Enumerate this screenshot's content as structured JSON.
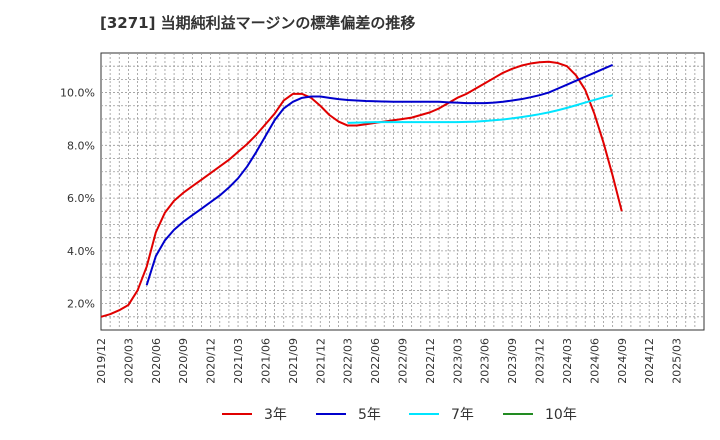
{
  "chart_data": {
    "type": "line",
    "title": "[3271]  当期純利益マージンの標準偏差の推移",
    "xlabel": "",
    "ylabel": "",
    "ylim": [
      1.0,
      11.5
    ],
    "y_ticks": [
      2.0,
      4.0,
      6.0,
      8.0,
      10.0
    ],
    "y_tick_labels": [
      "2.0%",
      "4.0%",
      "6.0%",
      "8.0%",
      "10.0%"
    ],
    "x_range": [
      0,
      66
    ],
    "x_tick_labels": [
      "2019/12",
      "2020/03",
      "2020/06",
      "2020/09",
      "2020/12",
      "2021/03",
      "2021/06",
      "2021/09",
      "2021/12",
      "2022/03",
      "2022/06",
      "2022/09",
      "2022/12",
      "2023/03",
      "2023/06",
      "2023/09",
      "2023/12",
      "2024/03",
      "2024/06",
      "2024/09",
      "2024/12",
      "2025/03"
    ],
    "grid": true,
    "legend_position": "bottom",
    "series": [
      {
        "name": "3年",
        "color": "#e00000",
        "x": [
          0,
          1,
          2,
          3,
          4,
          5,
          6,
          7,
          8,
          9,
          10,
          11,
          12,
          13,
          14,
          15,
          16,
          17,
          18,
          19,
          20,
          21,
          22,
          23,
          24,
          25,
          26,
          27,
          28,
          29,
          30,
          31,
          32,
          33,
          34,
          35,
          36,
          37,
          38,
          39,
          40,
          41,
          42,
          43,
          44,
          45,
          46,
          47,
          48,
          49,
          50,
          51,
          52,
          53,
          54,
          55,
          56,
          57,
          58,
          59,
          60,
          61,
          62,
          63
        ],
        "values": [
          1.5,
          1.6,
          1.75,
          1.95,
          2.5,
          3.4,
          4.7,
          5.45,
          5.9,
          6.2,
          6.45,
          6.7,
          6.95,
          7.2,
          7.45,
          7.75,
          8.05,
          8.4,
          8.8,
          9.2,
          9.7,
          9.95,
          9.95,
          9.8,
          9.5,
          9.15,
          8.9,
          8.75,
          8.75,
          8.8,
          8.85,
          8.9,
          8.95,
          9.0,
          9.05,
          9.15,
          9.25,
          9.4,
          9.6,
          9.8,
          9.95,
          10.15,
          10.35,
          10.55,
          10.75,
          10.9,
          11.02,
          11.1,
          11.15,
          11.17,
          11.12,
          11.0,
          10.65,
          10.1,
          9.2,
          8.1,
          6.85,
          5.5,
          null,
          null,
          null,
          null,
          null,
          null
        ]
      },
      {
        "name": "5年",
        "color": "#0000cc",
        "x": [
          0,
          1,
          2,
          3,
          4,
          5,
          6,
          7,
          8,
          9,
          10,
          11,
          12,
          13,
          14,
          15,
          16,
          17,
          18,
          19,
          20,
          21,
          22,
          23,
          24,
          25,
          26,
          27,
          28,
          29,
          30,
          31,
          32,
          33,
          34,
          35,
          36,
          37,
          38,
          39,
          40,
          41,
          42,
          43,
          44,
          45,
          46,
          47,
          48,
          49,
          50,
          51,
          52,
          53,
          54,
          55,
          56,
          57,
          58,
          59,
          60,
          61,
          62,
          63
        ],
        "values": [
          null,
          null,
          null,
          null,
          null,
          2.7,
          3.8,
          4.4,
          4.8,
          5.1,
          5.35,
          5.6,
          5.85,
          6.1,
          6.4,
          6.75,
          7.2,
          7.75,
          8.35,
          8.95,
          9.4,
          9.65,
          9.8,
          9.85,
          9.85,
          9.8,
          9.75,
          9.72,
          9.7,
          9.68,
          9.67,
          9.66,
          9.65,
          9.65,
          9.65,
          9.65,
          9.65,
          9.65,
          9.63,
          9.62,
          9.6,
          9.6,
          9.6,
          9.62,
          9.65,
          9.7,
          9.75,
          9.82,
          9.9,
          10.0,
          10.15,
          10.3,
          10.45,
          10.6,
          10.75,
          10.9,
          11.05,
          null,
          null,
          null,
          null,
          null,
          null,
          null
        ]
      },
      {
        "name": "7年",
        "color": "#00e5ff",
        "x": [
          0,
          1,
          2,
          3,
          4,
          5,
          6,
          7,
          8,
          9,
          10,
          11,
          12,
          13,
          14,
          15,
          16,
          17,
          18,
          19,
          20,
          21,
          22,
          23,
          24,
          25,
          26,
          27,
          28,
          29,
          30,
          31,
          32,
          33,
          34,
          35,
          36,
          37,
          38,
          39,
          40,
          41,
          42,
          43,
          44,
          45,
          46,
          47,
          48,
          49,
          50,
          51,
          52,
          53,
          54,
          55,
          56,
          57,
          58,
          59,
          60,
          61,
          62,
          63
        ],
        "values": [
          null,
          null,
          null,
          null,
          null,
          null,
          null,
          null,
          null,
          null,
          null,
          null,
          null,
          null,
          null,
          null,
          null,
          null,
          null,
          null,
          null,
          null,
          null,
          null,
          null,
          null,
          null,
          8.85,
          8.86,
          8.87,
          8.88,
          8.88,
          8.88,
          8.88,
          8.88,
          8.88,
          8.88,
          8.88,
          8.88,
          8.88,
          8.89,
          8.9,
          8.92,
          8.95,
          8.98,
          9.02,
          9.07,
          9.12,
          9.18,
          9.25,
          9.33,
          9.42,
          9.52,
          9.62,
          9.72,
          9.82,
          9.9,
          null,
          null,
          null,
          null,
          null,
          null,
          null
        ]
      },
      {
        "name": "10年",
        "color": "#228b22",
        "x": [],
        "values": []
      }
    ]
  }
}
